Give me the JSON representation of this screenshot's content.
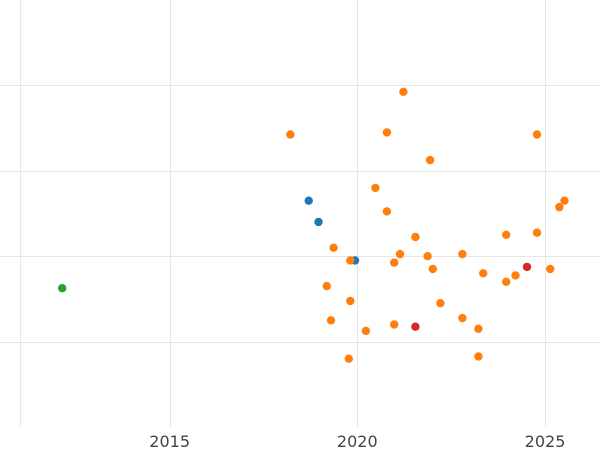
{
  "chart_data": {
    "type": "scatter",
    "title": "",
    "xlabel": "",
    "ylabel": "",
    "x_scale": "time",
    "xlim": [
      "2010-06-25",
      "2026-06-20"
    ],
    "x_ticks": [
      "2015-01-01",
      "2020-01-01",
      "2025-01-01"
    ],
    "x_tick_labels": [
      "2015",
      "2020",
      "2025"
    ],
    "y_tick_labels_visible": false,
    "ylim": [
      0,
      10
    ],
    "y_grid": [
      2,
      4,
      6,
      8
    ],
    "grid": true,
    "legend": "none",
    "series": [
      {
        "color": "#1f77b4",
        "points": [
          {
            "x": "2018-09-15",
            "y": 5.3
          },
          {
            "x": "2018-12-20",
            "y": 4.8
          },
          {
            "x": "2019-12-10",
            "y": 3.9
          }
        ]
      },
      {
        "color": "#ff7f0e",
        "points": [
          {
            "x": "2018-03-20",
            "y": 6.85
          },
          {
            "x": "2019-05-15",
            "y": 4.2
          },
          {
            "x": "2019-03-10",
            "y": 3.3
          },
          {
            "x": "2019-04-20",
            "y": 2.5
          },
          {
            "x": "2019-10-25",
            "y": 2.95
          },
          {
            "x": "2019-10-25",
            "y": 3.9
          },
          {
            "x": "2019-10-10",
            "y": 1.6
          },
          {
            "x": "2020-03-25",
            "y": 2.25
          },
          {
            "x": "2020-06-25",
            "y": 5.6
          },
          {
            "x": "2020-10-15",
            "y": 6.9
          },
          {
            "x": "2020-10-15",
            "y": 5.05
          },
          {
            "x": "2020-12-25",
            "y": 2.4
          },
          {
            "x": "2020-12-25",
            "y": 3.85
          },
          {
            "x": "2021-02-20",
            "y": 4.05
          },
          {
            "x": "2021-03-25",
            "y": 7.85
          },
          {
            "x": "2021-07-20",
            "y": 4.45
          },
          {
            "x": "2021-11-15",
            "y": 4.0
          },
          {
            "x": "2021-12-10",
            "y": 6.25
          },
          {
            "x": "2022-01-05",
            "y": 3.7
          },
          {
            "x": "2022-03-20",
            "y": 2.9
          },
          {
            "x": "2022-10-20",
            "y": 4.05
          },
          {
            "x": "2022-10-20",
            "y": 2.55
          },
          {
            "x": "2023-03-25",
            "y": 2.3
          },
          {
            "x": "2023-03-25",
            "y": 1.65
          },
          {
            "x": "2023-05-10",
            "y": 3.6
          },
          {
            "x": "2023-12-20",
            "y": 3.4
          },
          {
            "x": "2023-12-20",
            "y": 4.5
          },
          {
            "x": "2024-03-20",
            "y": 3.55
          },
          {
            "x": "2024-10-15",
            "y": 4.55
          },
          {
            "x": "2024-10-15",
            "y": 6.85
          },
          {
            "x": "2025-02-20",
            "y": 3.7
          },
          {
            "x": "2025-05-20",
            "y": 5.15
          },
          {
            "x": "2025-07-10",
            "y": 5.3
          }
        ]
      },
      {
        "color": "#2ca02c",
        "points": [
          {
            "x": "2012-02-20",
            "y": 3.25
          }
        ]
      },
      {
        "color": "#d62728",
        "points": [
          {
            "x": "2021-07-20",
            "y": 2.35
          },
          {
            "x": "2024-07-10",
            "y": 3.75
          }
        ]
      }
    ]
  }
}
